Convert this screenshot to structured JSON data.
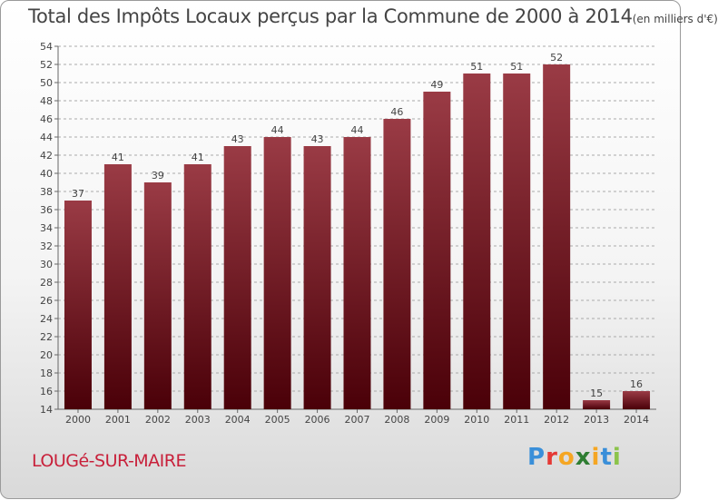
{
  "title": {
    "main": "Total des Impôts Locaux perçus par la Commune de 2000 à 2014",
    "unit": "(en milliers d'€)"
  },
  "footer": {
    "commune": "LOUGé-SUR-MAIRE",
    "logo_letters": [
      "P",
      "r",
      "o",
      "x",
      "i",
      "t",
      "i"
    ],
    "logo_colors": [
      "#3a8fd9",
      "#e53935",
      "#f5a623",
      "#2e7d32",
      "#f5a623",
      "#3a8fd9",
      "#8bc34a"
    ]
  },
  "colors": {
    "bar_top": "#9a3b45",
    "bar_bottom": "#4a0008",
    "grid": "#aaaaaa",
    "axis_text": "#444444"
  },
  "chart_data": {
    "type": "bar",
    "title": "Total des Impôts Locaux perçus par la Commune de 2000 à 2014 (en milliers d'€)",
    "xlabel": "",
    "ylabel": "",
    "categories": [
      "2000",
      "2001",
      "2002",
      "2003",
      "2004",
      "2005",
      "2006",
      "2007",
      "2008",
      "2009",
      "2010",
      "2011",
      "2012",
      "2013",
      "2014"
    ],
    "values": [
      37,
      41,
      39,
      41,
      43,
      44,
      43,
      44,
      46,
      49,
      51,
      51,
      52,
      15,
      16
    ],
    "ylim": [
      14,
      54
    ],
    "yticks": [
      14,
      16,
      18,
      20,
      22,
      24,
      26,
      28,
      30,
      32,
      34,
      36,
      38,
      40,
      42,
      44,
      46,
      48,
      50,
      52,
      54
    ],
    "grid": true,
    "data_labels": true
  }
}
